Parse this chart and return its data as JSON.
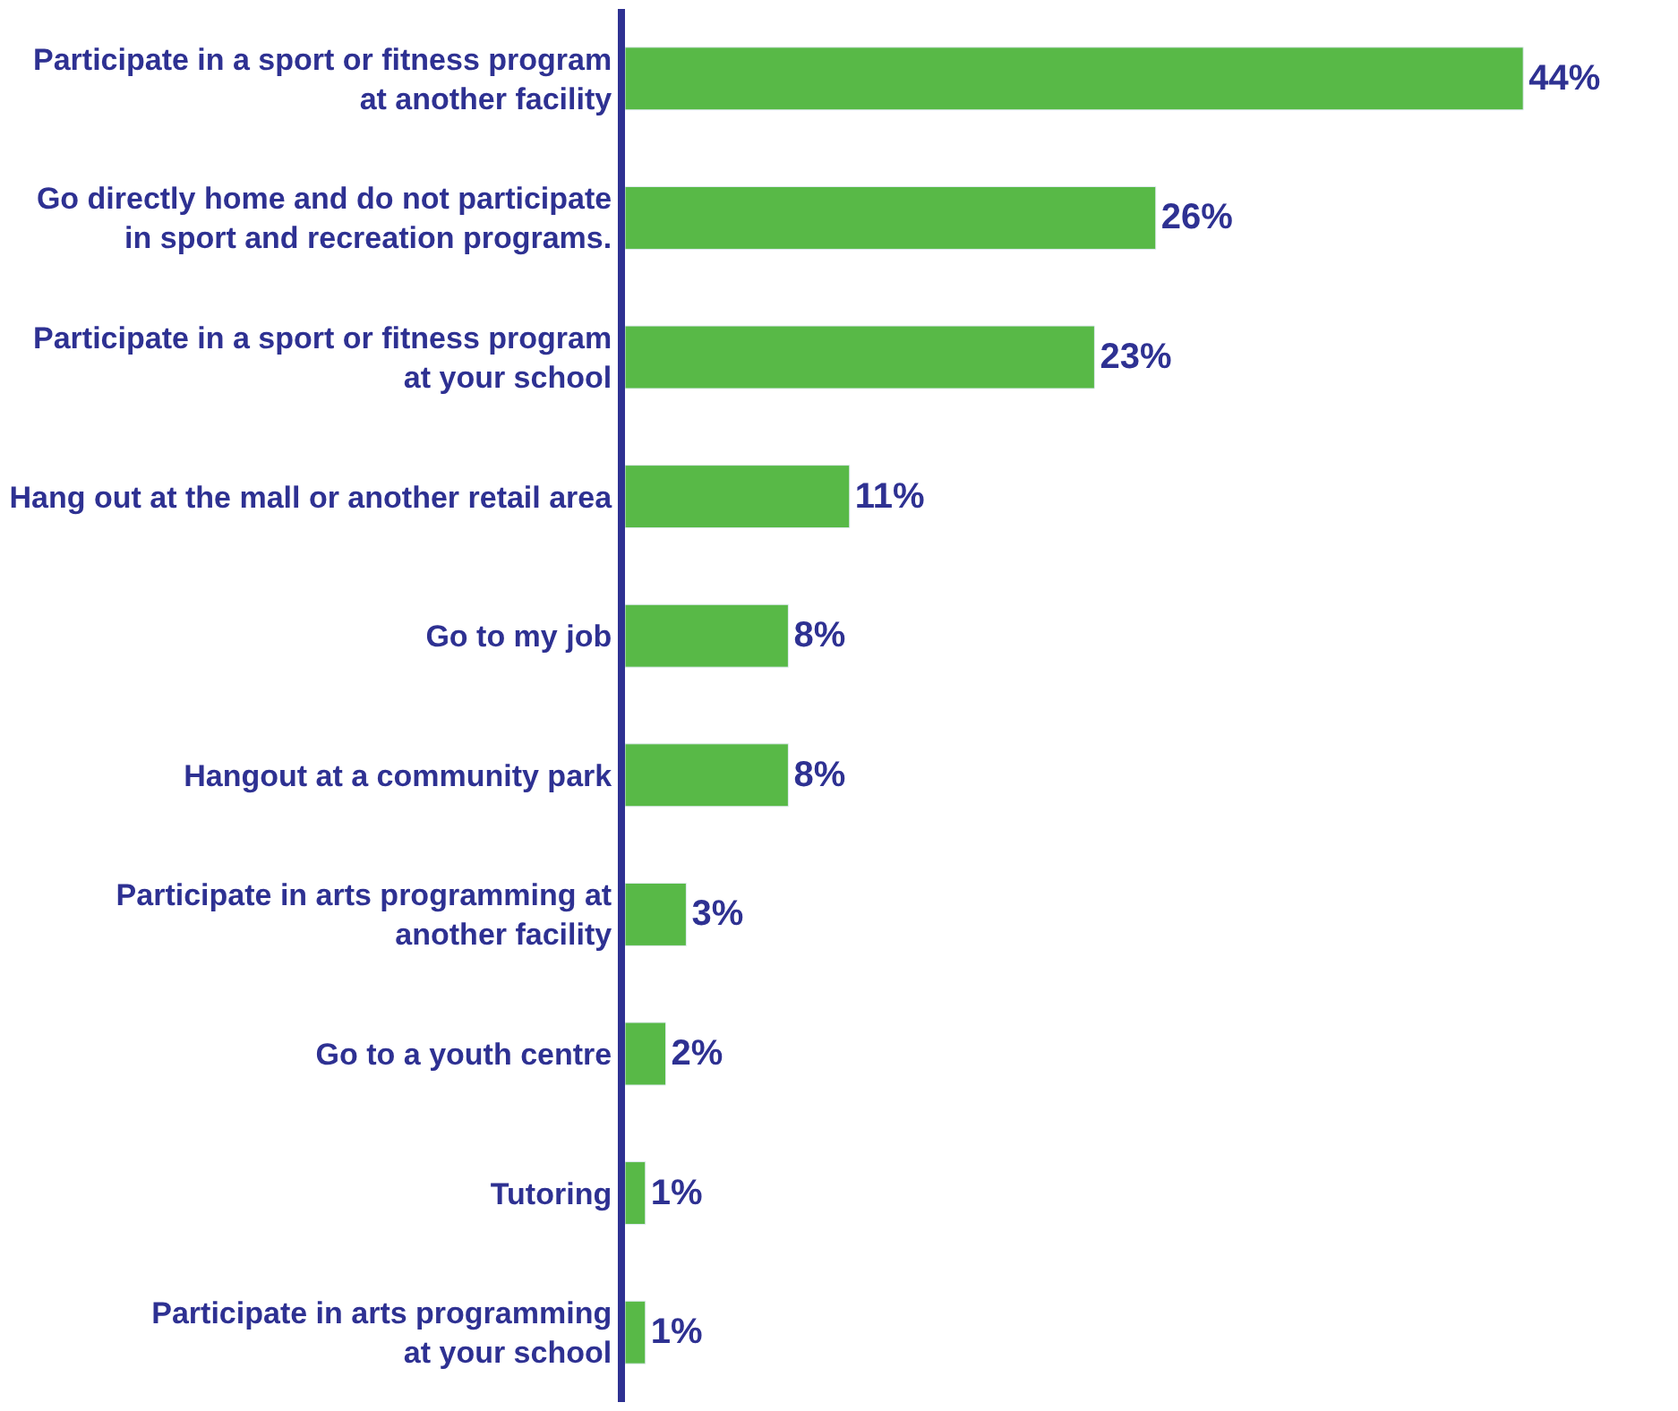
{
  "chart_data": {
    "type": "bar",
    "orientation": "horizontal",
    "categories": [
      "Participate in a sport or fitness program\nat another facility",
      "Go directly home and do not participate\nin sport and recreation programs.",
      "Participate in a sport or fitness program\nat your school",
      "Hang out at the mall or another retail area",
      "Go to my job",
      "Hangout at a community park",
      "Participate in arts programming at\nanother facility",
      "Go to a youth centre",
      "Tutoring",
      "Participate in arts programming\nat your school"
    ],
    "values": [
      44,
      26,
      23,
      11,
      8,
      8,
      3,
      2,
      1,
      1
    ],
    "value_labels": [
      "44%",
      "26%",
      "23%",
      "11%",
      "8%",
      "8%",
      "3%",
      "2%",
      "1%",
      "1%"
    ],
    "color": "#58b947"
  }
}
